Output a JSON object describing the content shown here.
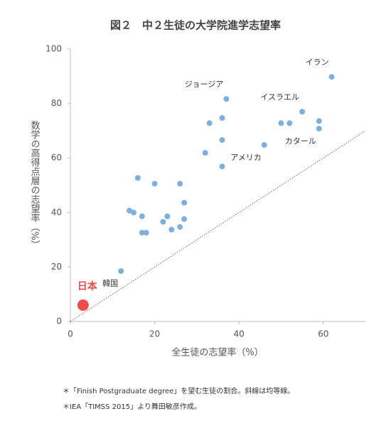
{
  "chart_data": {
    "type": "scatter",
    "title": "図２　中２生徒の大学院進学志望率",
    "x_label": "全生徒の志望率（%）",
    "y_label": "数学の高得点層の志望率（%）",
    "x": [
      12,
      16,
      20,
      26,
      14,
      15,
      17,
      17,
      18,
      22,
      23,
      24,
      26,
      27,
      27,
      32,
      33,
      36,
      36,
      36,
      37,
      46,
      50,
      52,
      55,
      59,
      59,
      62
    ],
    "y": [
      18.5,
      52.7,
      50.6,
      50.6,
      40.7,
      40,
      38.6,
      32.6,
      32.6,
      36.6,
      38.6,
      33.7,
      34.7,
      43.6,
      37.6,
      61.9,
      72.8,
      74.7,
      66.6,
      56.9,
      81.7,
      64.8,
      72.8,
      72.8,
      77,
      73.6,
      70.8,
      89.8
    ],
    "labels": [
      "韓国",
      null,
      null,
      null,
      null,
      null,
      null,
      null,
      null,
      null,
      null,
      null,
      null,
      null,
      null,
      null,
      null,
      null,
      null,
      null,
      "ジョージア",
      "アメリカ",
      null,
      null,
      "イスラエル",
      null,
      "カタール",
      "イラン"
    ],
    "color": "#7eb0de",
    "highlight": {
      "label": "日本",
      "x": 3,
      "y": 6,
      "color": "#f24b4b"
    },
    "xlim": [
      0,
      70
    ],
    "xticks": [
      0,
      20,
      40,
      60
    ],
    "ylim": [
      0,
      100
    ],
    "yticks": [
      0,
      20,
      40,
      60,
      80,
      100
    ],
    "notes": [
      "＊「Finish Postgraduate degree」を望む生徒の割合。斜線は均等線。",
      "＊IEA「TIMSS 2015」より舞田敏彦作成。"
    ]
  }
}
